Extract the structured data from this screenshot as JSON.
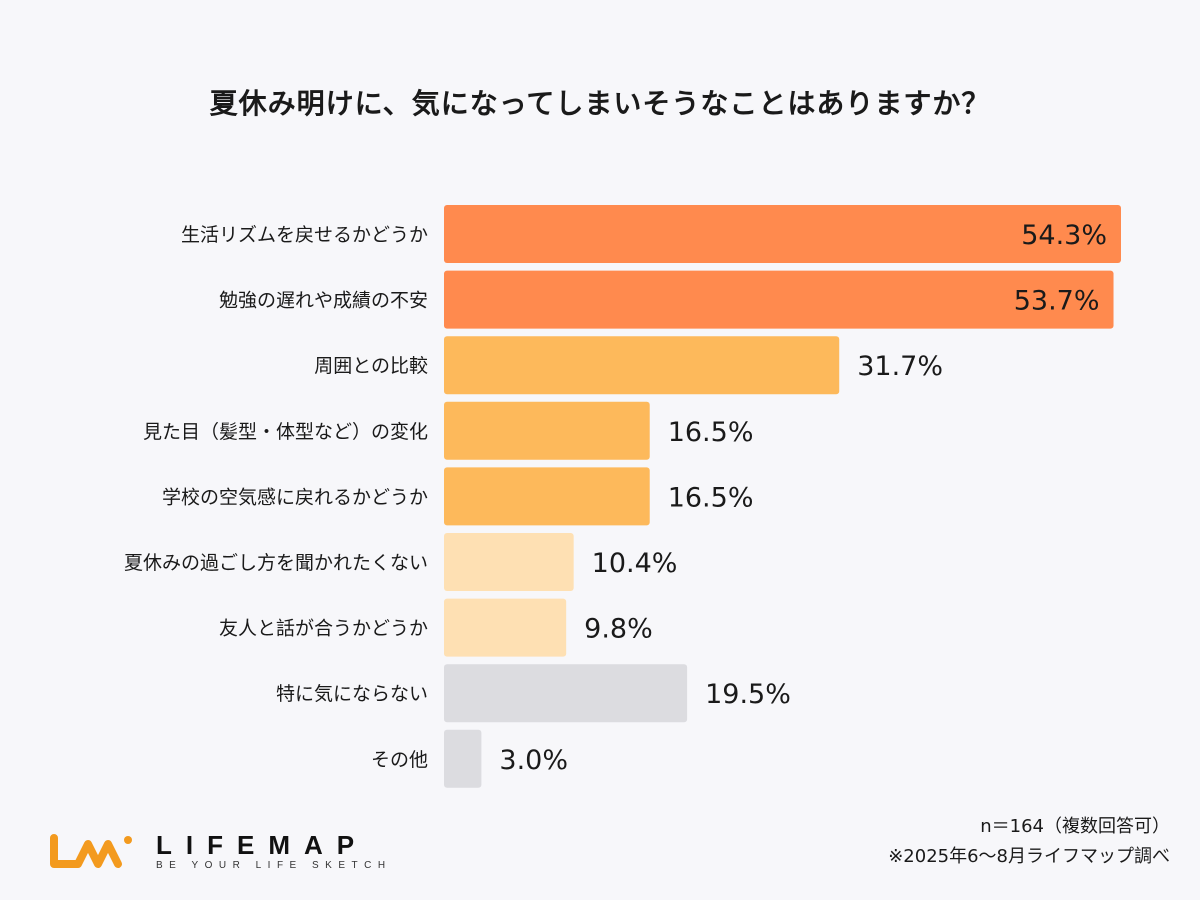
{
  "chart_data": {
    "type": "bar",
    "orientation": "horizontal",
    "title": "夏休み明けに、気になってしまいそうなことはありますか？",
    "categories": [
      "生活リズムを戻せるかどうか",
      "勉強の遅れや成績の不安",
      "周囲との比較",
      "見た目（髪型・体型など）の変化",
      "学校の空気感に戻れるかどうか",
      "夏休みの過ごし方を聞かれたくない",
      "友人と話が合うかどうか",
      "特に気にならない",
      "その他"
    ],
    "values": [
      54.3,
      53.7,
      31.7,
      16.5,
      16.5,
      10.4,
      9.8,
      19.5,
      3.0
    ],
    "value_labels": [
      "54.3%",
      "53.7%",
      "31.7%",
      "16.5%",
      "16.5%",
      "10.4%",
      "9.8%",
      "19.5%",
      "3.0%"
    ],
    "unit": "%",
    "xlim": [
      0,
      54.3
    ],
    "grid": false,
    "colors": [
      "#ff8a4e",
      "#ff8a4e",
      "#fdb95b",
      "#fdb95b",
      "#fdb95b",
      "#fee0b3",
      "#fee0b3",
      "#dcdce0",
      "#dcdce0"
    ]
  },
  "footer": {
    "sample": "n＝164（複数回答可）",
    "source": "※2025年6〜8月ライフマップ調べ"
  },
  "logo": {
    "name": "LIFEMAP",
    "tagline": "BE YOUR LIFE SKETCH",
    "color": "#f39a1e"
  }
}
